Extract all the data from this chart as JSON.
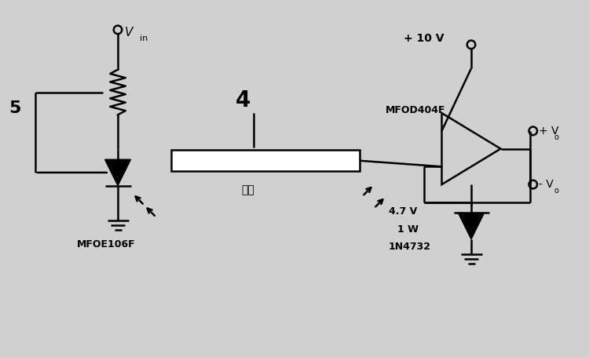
{
  "bg_color": "#d0d0d0",
  "line_color": "#000000",
  "text_color": "#000000",
  "fig_width": 7.5,
  "fig_height": 4.55,
  "labels": {
    "vin": "V",
    "vin_sub": "in",
    "label4": "4",
    "label5": "5",
    "mfoe": "MFOE106F",
    "mfod": "MFOD404F",
    "fiber": "光纤",
    "plus10v": "+ 10 V",
    "plus_vo": "+ V",
    "minus_vo": "- V",
    "v47": "4.7 V",
    "w1": "1 W",
    "n4732": "1N4732"
  }
}
